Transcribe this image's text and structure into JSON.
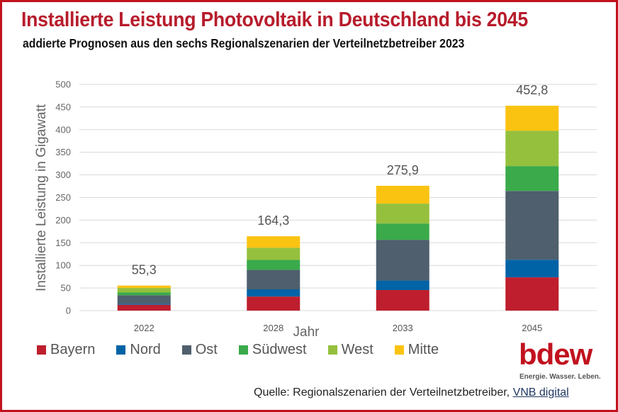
{
  "header": {
    "title": "Installierte Leistung Photovoltaik in Deutschland bis 2045",
    "subtitle": "addierte Prognosen aus den sechs Regionalszenarien der Verteilnetzbetreiber 2023"
  },
  "chart_data": {
    "type": "bar",
    "stacked": true,
    "title": "Installierte Leistung Photovoltaik in Deutschland bis 2045",
    "subtitle": "addierte Prognosen aus den sechs Regionalszenarien der Verteilnetzbetreiber 2023",
    "xlabel": "Jahr",
    "ylabel": "Installierte Leistung in Gigawatt",
    "ylim": [
      0,
      500
    ],
    "yticks": [
      "0",
      "50",
      "100",
      "150",
      "200",
      "250",
      "300",
      "350",
      "400",
      "450",
      "500"
    ],
    "grid": true,
    "legend_position": "bottom",
    "categories": [
      "2022",
      "2028",
      "2033",
      "2045"
    ],
    "totals": [
      55.3,
      164.3,
      275.9,
      452.8
    ],
    "total_labels": [
      "55,3",
      "164,3",
      "275,9",
      "452,8"
    ],
    "series": [
      {
        "name": "Bayern",
        "color": "#be1e2d",
        "values": [
          13,
          31,
          45.5,
          73.5
        ]
      },
      {
        "name": "Nord",
        "color": "#0063a6",
        "values": [
          2,
          16,
          21,
          39
        ]
      },
      {
        "name": "Ost",
        "color": "#4f5f6d",
        "values": [
          19,
          43,
          90,
          152
        ]
      },
      {
        "name": "Südwest",
        "color": "#3aaa4a",
        "values": [
          6,
          22,
          36,
          55
        ]
      },
      {
        "name": "West",
        "color": "#95c03d",
        "values": [
          10,
          27,
          44,
          78
        ]
      },
      {
        "name": "Mitte",
        "color": "#fbc311",
        "values": [
          5.3,
          25.3,
          39.4,
          55.3
        ]
      }
    ]
  },
  "logo": {
    "word": "bdew",
    "tagline": "Energie. Wasser. Leben."
  },
  "source": {
    "prefix": "Quelle: Regionalszenarien der Verteilnetzbetreiber, ",
    "link": "VNB digital"
  }
}
